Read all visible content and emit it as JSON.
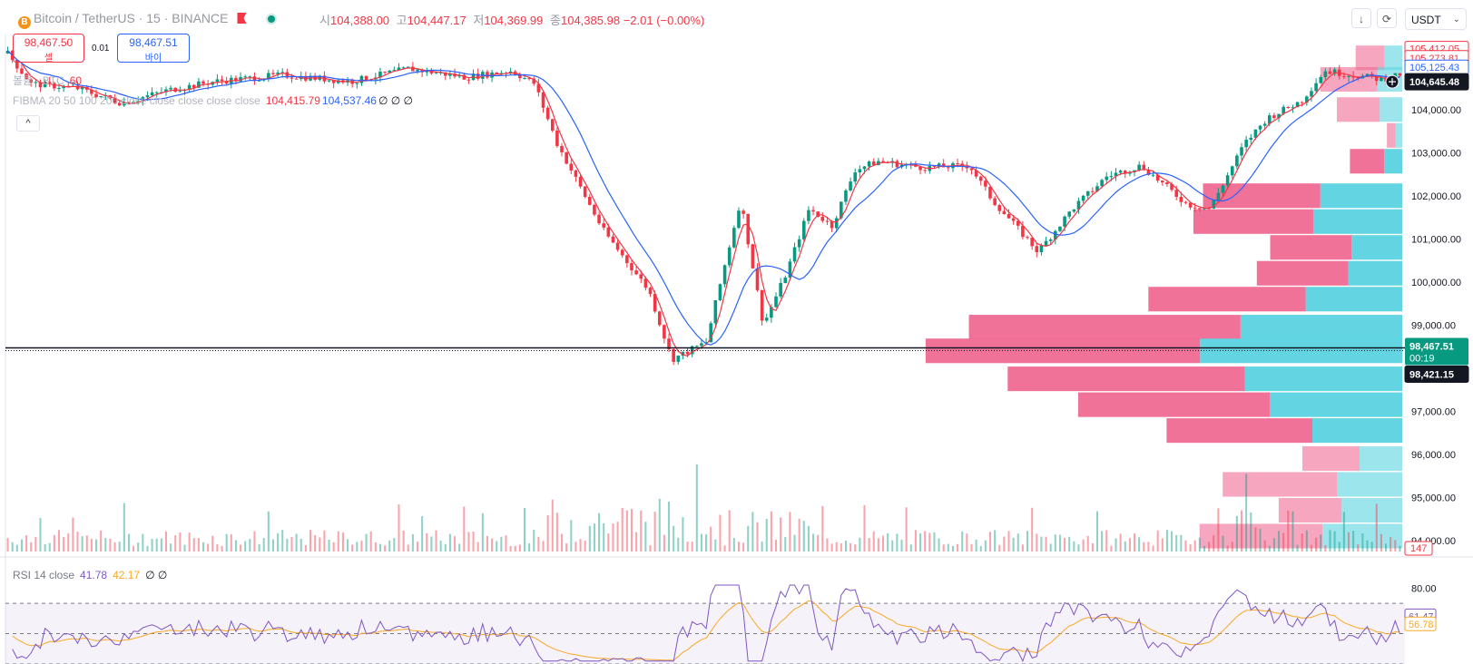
{
  "header": {
    "symbol_title": "Bitcoin / TetherUS · 15 · BINANCE",
    "ohlc": [
      {
        "label": "시",
        "value": "104,388.00"
      },
      {
        "label": "고",
        "value": "104,447.17"
      },
      {
        "label": "저",
        "value": "104,369.99"
      },
      {
        "label": "종",
        "value": "104,385.98"
      }
    ],
    "change": "−2.01 (−0.00%)",
    "download_icon": "↓",
    "fullscreen_icon": "⟳",
    "currency": "USDT"
  },
  "trade": {
    "sell_price": "98,467.50",
    "sell_label": "셀",
    "spread": "0.01",
    "buy_price": "98,467.51",
    "buy_label": "바이"
  },
  "legends": {
    "volume_label": "볼륨 · BTC",
    "volume_value": "60",
    "ma_label": "FIBMA 20 50 100 200 close close close close close",
    "ma_value_1": "104,415.79",
    "ma_value_2": "104,537.46",
    "ma_zeros": "∅ ∅ ∅",
    "collapse_icon": "^",
    "rsi_label": "RSI 14 close",
    "rsi_value": "41.78",
    "rsi_ma_value": "42.17",
    "rsi_zeros": "∅ ∅"
  },
  "price_axis": {
    "ticks": [
      "104,000.00",
      "103,000.00",
      "102,000.00",
      "101,000.00",
      "100,000.00",
      "99,000.00",
      "97,000.00",
      "96,000.00",
      "95,000.00",
      "94,000.00"
    ],
    "labels": {
      "top_red": "105,412.05",
      "second_red": "105,273.81",
      "blue": "105,125.43",
      "crosshair": "104,645.48",
      "current_price": "98,467.51",
      "countdown": "00:19",
      "last_close": "98,421.15",
      "volume_label": "147"
    }
  },
  "rsi_axis": {
    "top_tick": "80.00",
    "rsi_label": "61.47",
    "ma_label": "56.78"
  },
  "colors": {
    "up": "#089981",
    "down": "#f23645",
    "ma_fast": "#f23645",
    "ma_slow": "#2962ff",
    "vp_pink": "#f06a92",
    "vp_cyan": "#5bd3e0",
    "rsi": "#7e57c2",
    "rsi_ma": "#f9a825"
  },
  "chart_data": {
    "type": "candlestick",
    "symbol": "BTCUSDT",
    "interval": "15",
    "price_range": [
      93700,
      105700
    ],
    "current_price": 98467.51,
    "price_path": [
      {
        "x": 0,
        "price": 105300
      },
      {
        "x": 0.02,
        "price": 104600
      },
      {
        "x": 0.06,
        "price": 104500
      },
      {
        "x": 0.1,
        "price": 104150
      },
      {
        "x": 0.14,
        "price": 104450
      },
      {
        "x": 0.18,
        "price": 104650
      },
      {
        "x": 0.24,
        "price": 104800
      },
      {
        "x": 0.3,
        "price": 104650
      },
      {
        "x": 0.35,
        "price": 104950
      },
      {
        "x": 0.4,
        "price": 104750
      },
      {
        "x": 0.44,
        "price": 104900
      },
      {
        "x": 0.46,
        "price": 104600
      },
      {
        "x": 0.48,
        "price": 103200
      },
      {
        "x": 0.52,
        "price": 101200
      },
      {
        "x": 0.56,
        "price": 99800
      },
      {
        "x": 0.58,
        "price": 98200
      },
      {
        "x": 0.61,
        "price": 98600
      },
      {
        "x": 0.64,
        "price": 101900
      },
      {
        "x": 0.66,
        "price": 99000
      },
      {
        "x": 0.68,
        "price": 100200
      },
      {
        "x": 0.7,
        "price": 101700
      },
      {
        "x": 0.72,
        "price": 101300
      },
      {
        "x": 0.74,
        "price": 102600
      },
      {
        "x": 0.76,
        "price": 102800
      },
      {
        "x": 0.8,
        "price": 102650
      },
      {
        "x": 0.84,
        "price": 102700
      },
      {
        "x": 0.86,
        "price": 101900
      },
      {
        "x": 0.9,
        "price": 100700
      },
      {
        "x": 0.93,
        "price": 101700
      },
      {
        "x": 0.96,
        "price": 102450
      },
      {
        "x": 0.99,
        "price": 102700
      },
      {
        "x": 1.03,
        "price": 101800
      },
      {
        "x": 1.05,
        "price": 101700
      },
      {
        "x": 1.08,
        "price": 103200
      },
      {
        "x": 1.1,
        "price": 103800
      },
      {
        "x": 1.13,
        "price": 104200
      },
      {
        "x": 1.15,
        "price": 104900
      },
      {
        "x": 1.2,
        "price": 104700
      },
      {
        "x": 1.22,
        "price": 104850
      }
    ],
    "volume_profile": [
      {
        "price": 105200,
        "sell": 0.2,
        "buy": 0.16
      },
      {
        "price": 104700,
        "sell": 0.4,
        "buy": 0.22
      },
      {
        "price": 104000,
        "sell": 0.3,
        "buy": 0.2
      },
      {
        "price": 103400,
        "sell": 0.06,
        "buy": 0.06
      },
      {
        "price": 102800,
        "sell": 0.24,
        "buy": 0.16
      },
      {
        "price": 102000,
        "sell": 0.82,
        "buy": 0.73
      },
      {
        "price": 101400,
        "sell": 0.84,
        "buy": 0.79
      },
      {
        "price": 100800,
        "sell": 0.57,
        "buy": 0.45
      },
      {
        "price": 100200,
        "sell": 0.64,
        "buy": 0.48
      },
      {
        "price": 99600,
        "sell": 1.1,
        "buy": 0.86
      },
      {
        "price": 98950,
        "sell": 1.9,
        "buy": 1.44
      },
      {
        "price": 98400,
        "sell": 1.92,
        "buy": 1.8
      },
      {
        "price": 97750,
        "sell": 1.66,
        "buy": 1.4
      },
      {
        "price": 97150,
        "sell": 1.34,
        "buy": 1.18
      },
      {
        "price": 96550,
        "sell": 1.02,
        "buy": 0.8
      },
      {
        "price": 95900,
        "sell": 0.4,
        "buy": 0.38
      },
      {
        "price": 95300,
        "sell": 0.8,
        "buy": 0.58
      },
      {
        "price": 94700,
        "sell": 0.44,
        "buy": 0.54
      },
      {
        "price": 94100,
        "sell": 0.86,
        "buy": 0.71
      }
    ],
    "rsi_range": [
      30,
      85
    ],
    "rsi_levels": [
      70,
      50,
      30
    ],
    "rsi_last": 61.47,
    "rsi_ma_last": 56.78
  }
}
